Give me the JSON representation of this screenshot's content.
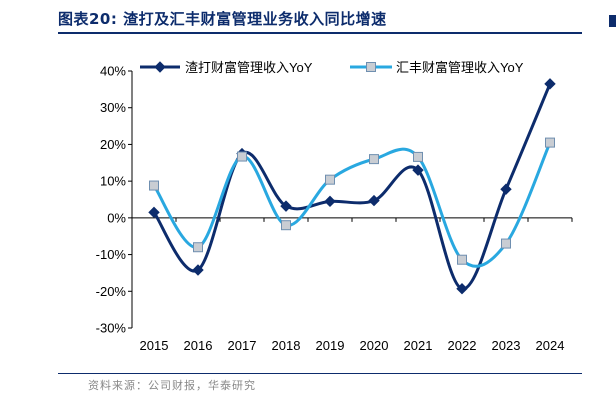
{
  "figure": {
    "title": "图表20:  渣打及汇丰财富管理业务收入同比增速",
    "source": "资料来源：公司财报，华泰研究"
  },
  "colors": {
    "title": "#0d2c6c",
    "series_1": "#0d2c6c",
    "series_2": "#29a8e0",
    "marker_2_fill": "#c9cdd3",
    "marker_2_stroke": "#6f8fb0"
  },
  "chart_data": {
    "type": "line",
    "smooth": true,
    "categories": [
      "2015",
      "2016",
      "2017",
      "2018",
      "2019",
      "2020",
      "2021",
      "2022",
      "2023",
      "2024"
    ],
    "series": [
      {
        "name": "渣打财富管理收入YoY",
        "marker": "diamond",
        "values": [
          1.5,
          -14.2,
          17.5,
          3.2,
          4.5,
          4.7,
          13.0,
          -19.3,
          7.8,
          36.5
        ]
      },
      {
        "name": "汇丰财富管理收入YoY",
        "marker": "square",
        "values": [
          8.8,
          -8.0,
          16.7,
          -2.0,
          10.4,
          16.0,
          16.6,
          -11.4,
          -7.0,
          20.5
        ]
      }
    ],
    "y_tick_labels": [
      "-30%",
      "-20%",
      "-10%",
      "0%",
      "10%",
      "20%",
      "30%",
      "40%"
    ],
    "ylim": [
      -30,
      40
    ],
    "y_tick_step": 10,
    "grid": false,
    "legend_position": "top",
    "xlabel": "",
    "ylabel": ""
  }
}
